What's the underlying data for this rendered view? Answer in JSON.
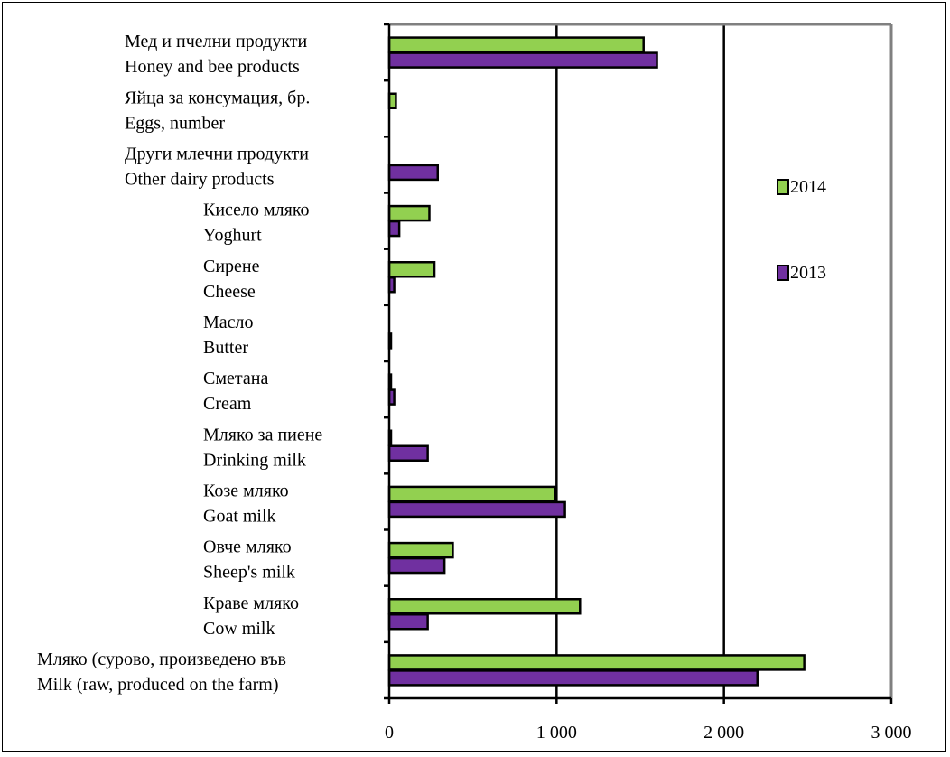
{
  "colors": {
    "series_2014": "#92d050",
    "series_2013": "#7030a0",
    "plot_border": "#808080",
    "outline": "#000000"
  },
  "chart_data": {
    "type": "bar",
    "orientation": "horizontal",
    "categories": [
      {
        "bg": "Мед и пчелни продукти",
        "en": "Honey and bee products"
      },
      {
        "bg": "Яйца за консумация, бр.",
        "en": "Eggs, number"
      },
      {
        "bg": "Други млечни продукти",
        "en": "Other dairy products"
      },
      {
        "bg": "Кисело мляко",
        "en": "Yoghurt"
      },
      {
        "bg": "Сирене",
        "en": "Cheese"
      },
      {
        "bg": "Масло",
        "en": "Butter"
      },
      {
        "bg": "Сметана",
        "en": "Cream"
      },
      {
        "bg": "Мляко за пиене",
        "en": "Drinking milk"
      },
      {
        "bg": "Козе мляко",
        "en": "Goat  milk"
      },
      {
        "bg": "Овче мляко",
        "en": "Sheep's milk"
      },
      {
        "bg": "Краве мляко",
        "en": "Cow milk"
      },
      {
        "bg": "Мляко (сурово, произведено във",
        "en": "Milk (raw, produced on the farm)"
      }
    ],
    "series": [
      {
        "name": "2014",
        "values": [
          1520,
          40,
          0,
          240,
          270,
          0,
          10,
          10,
          990,
          380,
          1140,
          2480
        ]
      },
      {
        "name": "2013",
        "values": [
          1600,
          0,
          290,
          60,
          30,
          10,
          30,
          230,
          1050,
          330,
          230,
          2200
        ]
      }
    ],
    "xlim": [
      0,
      3000
    ],
    "xticks": [
      "0",
      "1 000",
      "2 000",
      "3 000"
    ],
    "xtick_values": [
      0,
      1000,
      2000,
      3000
    ],
    "legend": [
      "2014",
      "2013"
    ],
    "legend_position": "right",
    "grid": true
  }
}
